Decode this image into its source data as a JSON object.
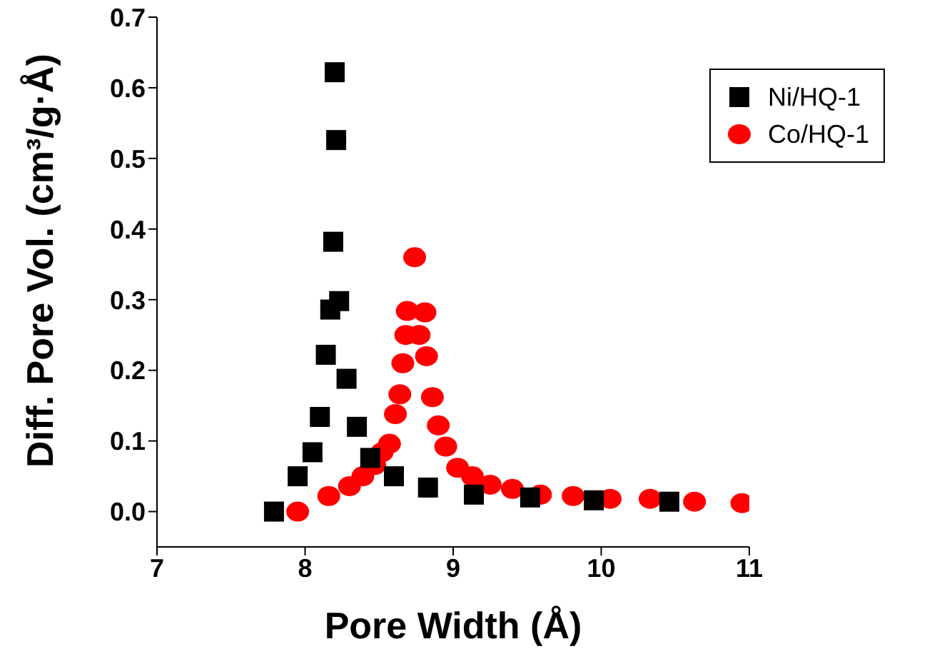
{
  "chart_data": {
    "type": "scatter",
    "xlabel": "Pore Width (Å)",
    "ylabel": "Diff. Pore Vol. (cm³/g·Å)",
    "xlim": [
      7,
      11
    ],
    "xticks": [
      7,
      8,
      9,
      10,
      11
    ],
    "ylim": [
      -0.05,
      0.7
    ],
    "yticks": [
      {
        "value": 0,
        "label": "0.0"
      },
      {
        "value": 0.1,
        "label": "0.1"
      },
      {
        "value": 0.2,
        "label": "0.2"
      },
      {
        "value": 0.3,
        "label": "0.3"
      },
      {
        "value": 0.4,
        "label": "0.4"
      },
      {
        "value": 0.5,
        "label": "0.5"
      },
      {
        "value": 0.6,
        "label": "0.6"
      },
      {
        "value": 0.7,
        "label": "0.7"
      }
    ],
    "legend": "top right",
    "grid": false,
    "series": [
      {
        "name": "Ni/HQ-1",
        "color": "#000000",
        "marker": "square",
        "x": [
          7.79,
          7.95,
          8.05,
          8.1,
          8.14,
          8.17,
          8.19,
          8.2,
          8.21,
          8.23,
          8.28,
          8.35,
          8.44,
          8.6,
          8.83,
          9.14,
          9.52,
          9.95,
          10.46
        ],
        "values": [
          0,
          0.05,
          0.084,
          0.134,
          0.222,
          0.286,
          0.382,
          0.622,
          0.526,
          0.298,
          0.188,
          0.12,
          0.076,
          0.05,
          0.034,
          0.024,
          0.02,
          0.016,
          0.014
        ]
      },
      {
        "name": "Co/HQ-1",
        "color": "#ff0000",
        "marker": "circle",
        "x": [
          7.95,
          8.16,
          8.3,
          8.39,
          8.47,
          8.52,
          8.57,
          8.61,
          8.64,
          8.66,
          8.68,
          8.69,
          8.74,
          8.77,
          8.81,
          8.82,
          8.86,
          8.9,
          8.95,
          9.03,
          9.13,
          9.25,
          9.4,
          9.59,
          9.81,
          10.06,
          10.33,
          10.63,
          10.95
        ],
        "values": [
          0,
          0.022,
          0.036,
          0.05,
          0.066,
          0.084,
          0.096,
          0.138,
          0.166,
          0.21,
          0.25,
          0.284,
          0.36,
          0.25,
          0.282,
          0.22,
          0.162,
          0.122,
          0.092,
          0.062,
          0.05,
          0.038,
          0.032,
          0.024,
          0.022,
          0.018,
          0.018,
          0.014,
          0.012
        ]
      }
    ]
  }
}
